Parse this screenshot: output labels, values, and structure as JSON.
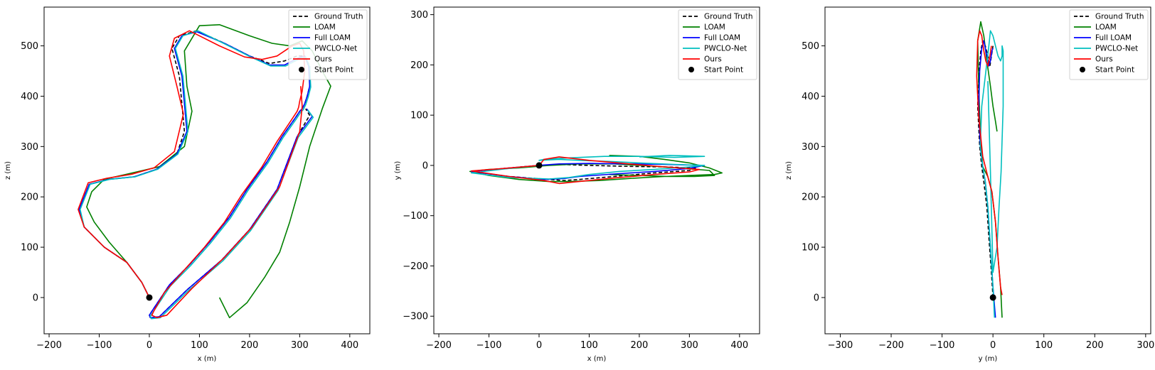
{
  "chart_data": [
    {
      "type": "line",
      "xlabel": "x (m)",
      "ylabel": "z (m)",
      "xlim": [
        -210,
        440
      ],
      "ylim": [
        -72,
        577
      ],
      "xticks": [
        -200,
        -100,
        0,
        100,
        200,
        300,
        400
      ],
      "yticks": [
        0,
        100,
        200,
        300,
        400,
        500
      ],
      "legend_position": "top-right",
      "series": [
        {
          "name": "Ground Truth",
          "color": "#000000",
          "dash": "5,3",
          "x": [
            0,
            -15,
            -45,
            -90,
            -130,
            -140,
            -120,
            -80,
            -30,
            15,
            55,
            70,
            60,
            45,
            60,
            95,
            150,
            200,
            240,
            270,
            295,
            310,
            320,
            320,
            315,
            310,
            305,
            300,
            290,
            265,
            235,
            195,
            160,
            120,
            80,
            40,
            10,
            0,
            2,
            20,
            75,
            145,
            200,
            255,
            295,
            320,
            312
          ],
          "y": [
            0,
            30,
            70,
            100,
            140,
            175,
            225,
            235,
            240,
            255,
            285,
            330,
            440,
            495,
            520,
            530,
            505,
            480,
            465,
            470,
            480,
            480,
            460,
            420,
            400,
            385,
            375,
            370,
            355,
            320,
            270,
            215,
            160,
            110,
            65,
            25,
            -20,
            -35,
            -40,
            -38,
            15,
            75,
            135,
            215,
            320,
            362,
            375
          ]
        },
        {
          "name": "LOAM",
          "color": "#008000",
          "dash": "",
          "x": [
            0,
            -15,
            -45,
            -80,
            -110,
            -125,
            -115,
            -90,
            -45,
            20,
            70,
            85,
            75,
            70,
            100,
            140,
            200,
            245,
            280,
            305,
            325,
            345,
            362,
            345,
            320,
            300,
            280,
            260,
            230,
            195,
            160,
            140
          ],
          "y": [
            0,
            30,
            70,
            110,
            150,
            180,
            210,
            235,
            245,
            260,
            300,
            370,
            420,
            490,
            540,
            542,
            520,
            505,
            500,
            510,
            490,
            450,
            420,
            375,
            300,
            220,
            150,
            90,
            40,
            -10,
            -40,
            0
          ]
        },
        {
          "name": "Full LOAM",
          "color": "#0000ff",
          "dash": "",
          "x": [
            0,
            -15,
            -45,
            -90,
            -130,
            -140,
            -120,
            -80,
            -30,
            15,
            55,
            75,
            65,
            50,
            65,
            95,
            150,
            200,
            240,
            270,
            295,
            310,
            318,
            320,
            315,
            310,
            305,
            300,
            290,
            265,
            235,
            195,
            160,
            120,
            80,
            40,
            10,
            0,
            2,
            20,
            75,
            145,
            200,
            255,
            295,
            325,
            314
          ],
          "y": [
            0,
            30,
            70,
            100,
            140,
            175,
            225,
            235,
            240,
            255,
            285,
            330,
            440,
            495,
            520,
            528,
            505,
            480,
            462,
            462,
            475,
            480,
            460,
            420,
            400,
            385,
            375,
            370,
            355,
            320,
            270,
            215,
            160,
            110,
            65,
            25,
            -20,
            -35,
            -40,
            -38,
            15,
            75,
            135,
            215,
            320,
            360,
            375
          ]
        },
        {
          "name": "PWCLO-Net",
          "color": "#00bfbf",
          "dash": "",
          "x": [
            0,
            -15,
            -45,
            -90,
            -130,
            -138,
            -118,
            -78,
            -28,
            17,
            57,
            77,
            67,
            52,
            67,
            97,
            152,
            202,
            242,
            272,
            297,
            312,
            320,
            322,
            317,
            312,
            307,
            302,
            292,
            267,
            237,
            197,
            162,
            122,
            82,
            42,
            12,
            2,
            4,
            22,
            77,
            147,
            202,
            257,
            297,
            327,
            316
          ],
          "y": [
            0,
            30,
            70,
            100,
            140,
            175,
            225,
            235,
            240,
            255,
            285,
            330,
            440,
            495,
            520,
            530,
            503,
            478,
            460,
            460,
            473,
            478,
            458,
            418,
            398,
            383,
            373,
            368,
            353,
            318,
            268,
            213,
            158,
            108,
            63,
            23,
            -22,
            -37,
            -42,
            -40,
            13,
            73,
            133,
            213,
            318,
            358,
            373
          ]
        },
        {
          "name": "Ours",
          "color": "#ff0000",
          "dash": "",
          "x": [
            0,
            -15,
            -45,
            -90,
            -130,
            -142,
            -122,
            -85,
            -35,
            10,
            50,
            68,
            55,
            40,
            50,
            80,
            140,
            190,
            225,
            255,
            285,
            300,
            308,
            310,
            305,
            300,
            298,
            295,
            285,
            255,
            225,
            185,
            150,
            110,
            70,
            30,
            10,
            5,
            15,
            35,
            85,
            150,
            205,
            260,
            300,
            305,
            302
          ],
          "y": [
            0,
            30,
            70,
            100,
            140,
            175,
            228,
            237,
            245,
            258,
            290,
            365,
            420,
            480,
            515,
            530,
            500,
            478,
            473,
            480,
            500,
            505,
            490,
            450,
            410,
            390,
            378,
            370,
            355,
            310,
            260,
            205,
            150,
            100,
            55,
            10,
            -25,
            -35,
            -40,
            -35,
            18,
            80,
            140,
            220,
            330,
            380,
            420
          ]
        }
      ],
      "start_point": {
        "name": "Start Point",
        "x": 0,
        "y": 0,
        "color": "#000000"
      }
    },
    {
      "type": "line",
      "xlabel": "x (m)",
      "ylabel": "y (m)",
      "xlim": [
        -210,
        440
      ],
      "ylim": [
        -335,
        315
      ],
      "xticks": [
        -200,
        -100,
        0,
        100,
        200,
        300,
        400
      ],
      "yticks": [
        -300,
        -200,
        -100,
        0,
        100,
        200,
        300
      ],
      "legend_position": "top-right",
      "series": [
        {
          "name": "Ground Truth",
          "color": "#000000",
          "dash": "5,3",
          "x": [
            0,
            -70,
            -135,
            -60,
            20,
            50,
            80,
            150,
            230,
            300,
            315,
            250,
            180,
            100,
            40,
            0
          ],
          "y": [
            0,
            -6,
            -12,
            -22,
            -28,
            -30,
            -28,
            -22,
            -15,
            -10,
            -5,
            -3,
            -2,
            0,
            2,
            0
          ]
        },
        {
          "name": "LOAM",
          "color": "#008000",
          "dash": "",
          "x": [
            140,
            200,
            250,
            300,
            340,
            365,
            350,
            300,
            250,
            180,
            120,
            60,
            20,
            -40,
            -100,
            -138,
            -100,
            -40,
            20,
            80,
            150,
            220,
            290,
            340,
            350,
            310,
            260,
            200,
            140
          ],
          "y": [
            20,
            18,
            12,
            5,
            -5,
            -15,
            -18,
            -20,
            -22,
            -26,
            -30,
            -32,
            -32,
            -28,
            -20,
            -12,
            -8,
            -5,
            0,
            3,
            3,
            -1,
            -6,
            -10,
            -20,
            -22,
            -22,
            -20,
            -18
          ]
        },
        {
          "name": "Full LOAM",
          "color": "#0000ff",
          "dash": "",
          "x": [
            0,
            -70,
            -135,
            -60,
            10,
            50,
            80,
            150,
            230,
            300,
            330,
            250,
            180,
            100,
            40,
            0
          ],
          "y": [
            0,
            -6,
            -12,
            -22,
            -28,
            -26,
            -22,
            -17,
            -12,
            -6,
            0,
            2,
            3,
            4,
            3,
            0
          ]
        },
        {
          "name": "PWCLO-Net",
          "color": "#00bfbf",
          "dash": "",
          "x": [
            0,
            -70,
            -135,
            -60,
            20,
            60,
            100,
            160,
            230,
            300,
            330,
            270,
            200,
            140,
            80,
            40,
            0,
            10,
            60,
            130,
            200,
            270,
            330,
            260,
            200
          ],
          "y": [
            0,
            -7,
            -15,
            -24,
            -27,
            -24,
            -18,
            -12,
            -8,
            -3,
            0,
            2,
            5,
            8,
            10,
            12,
            10,
            12,
            15,
            18,
            18,
            16,
            18,
            20,
            17
          ]
        },
        {
          "name": "Ours",
          "color": "#ff0000",
          "dash": "",
          "x": [
            0,
            -70,
            -135,
            -60,
            10,
            40,
            80,
            150,
            230,
            300,
            320,
            250,
            180,
            100,
            40,
            10,
            0
          ],
          "y": [
            0,
            -6,
            -11,
            -22,
            -30,
            -36,
            -32,
            -25,
            -18,
            -13,
            -8,
            -3,
            3,
            10,
            17,
            12,
            0
          ]
        }
      ],
      "start_point": {
        "name": "Start Point",
        "x": 0,
        "y": 0,
        "color": "#000000"
      }
    },
    {
      "type": "line",
      "xlabel": "y (m)",
      "ylabel": "z (m)",
      "xlim": [
        -330,
        310
      ],
      "ylim": [
        -72,
        577
      ],
      "xticks": [
        -300,
        -200,
        -100,
        0,
        100,
        200,
        300
      ],
      "yticks": [
        0,
        100,
        200,
        300,
        400,
        500
      ],
      "legend_position": "top-right",
      "series": [
        {
          "name": "Ground Truth",
          "color": "#000000",
          "dash": "5,3",
          "x": [
            0,
            -3,
            -8,
            -12,
            -18,
            -22,
            -26,
            -30,
            -28,
            -24,
            -20,
            -15,
            -10,
            -6,
            -3,
            0
          ],
          "y": [
            0,
            50,
            120,
            180,
            230,
            260,
            300,
            380,
            440,
            490,
            510,
            500,
            480,
            460,
            480,
            500
          ]
        },
        {
          "name": "LOAM",
          "color": "#008000",
          "dash": "",
          "x": [
            18,
            15,
            10,
            5,
            -2,
            -10,
            -20,
            -25,
            -28,
            -30,
            -24,
            -18,
            -12,
            -5,
            0,
            5,
            8
          ],
          "y": [
            -40,
            20,
            80,
            150,
            210,
            240,
            260,
            330,
            420,
            510,
            548,
            520,
            470,
            420,
            380,
            350,
            330
          ]
        },
        {
          "name": "Full LOAM",
          "color": "#0000ff",
          "dash": "",
          "x": [
            5,
            0,
            -5,
            -10,
            -15,
            -20,
            -25,
            -28,
            -26,
            -22,
            -18,
            -12,
            -8,
            -5,
            -2,
            0
          ],
          "y": [
            -40,
            20,
            100,
            180,
            230,
            260,
            300,
            380,
            450,
            495,
            510,
            480,
            460,
            470,
            490,
            495
          ]
        },
        {
          "name": "PWCLO-Net",
          "color": "#00bfbf",
          "dash": "",
          "x": [
            3,
            0,
            -5,
            -10,
            -15,
            -20,
            -25,
            -22,
            -15,
            -8,
            -5,
            0,
            5,
            10,
            15,
            18,
            18,
            20,
            20,
            16,
            12,
            8,
            0,
            -5,
            -10
          ],
          "y": [
            -40,
            20,
            100,
            180,
            230,
            260,
            300,
            380,
            440,
            500,
            530,
            520,
            500,
            480,
            470,
            480,
            500,
            490,
            380,
            250,
            180,
            100,
            50,
            250,
            430
          ]
        },
        {
          "name": "Ours",
          "color": "#ff0000",
          "dash": "",
          "x": [
            18,
            15,
            10,
            5,
            -2,
            -10,
            -20,
            -28,
            -32,
            -30,
            -26,
            -22,
            -18,
            -14,
            -10,
            -6,
            -3
          ],
          "y": [
            5,
            20,
            80,
            150,
            210,
            240,
            280,
            360,
            440,
            510,
            530,
            520,
            490,
            470,
            460,
            480,
            500
          ]
        }
      ],
      "start_point": {
        "name": "Start Point",
        "x": 0,
        "y": 0,
        "color": "#000000"
      }
    }
  ]
}
